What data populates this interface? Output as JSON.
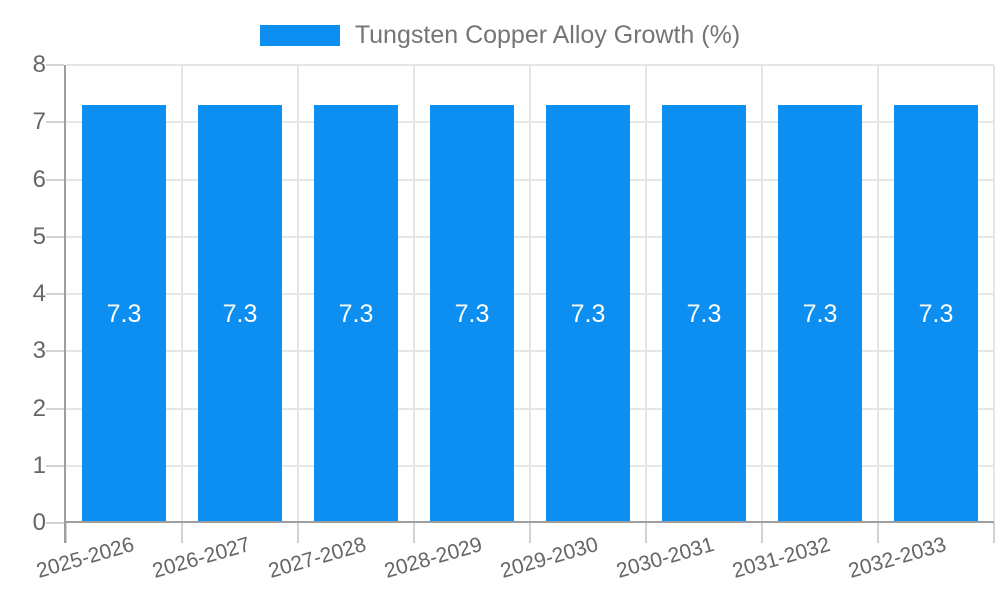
{
  "legend": {
    "label": "Tungsten Copper Alloy Growth (%)"
  },
  "chart_data": {
    "type": "bar",
    "title": "",
    "categories": [
      "2025-2026",
      "2026-2027",
      "2027-2028",
      "2028-2029",
      "2029-2030",
      "2030-2031",
      "2031-2032",
      "2032-2033"
    ],
    "series": [
      {
        "name": "Tungsten Copper Alloy Growth (%)",
        "values": [
          7.3,
          7.3,
          7.3,
          7.3,
          7.3,
          7.3,
          7.3,
          7.3
        ]
      }
    ],
    "value_label_format": "1-decimal",
    "value_label_position": "inside-center",
    "xlabel": "",
    "ylabel": "",
    "ylim": [
      0,
      8
    ],
    "yticks": [
      0,
      1,
      2,
      3,
      4,
      5,
      6,
      7,
      8
    ],
    "grid": true,
    "legend_position": "top-center",
    "x_label_rotation_deg": -16,
    "colors": {
      "bar": "#0D8FF2",
      "value_label": "#FFFFFF",
      "gridline": "#E6E6E6",
      "tick": "#D2D2D2",
      "axis_line": "#9E9E9E",
      "axis_label_text": "#666666",
      "legend_text": "#757575",
      "background": "#FFFFFF"
    }
  }
}
